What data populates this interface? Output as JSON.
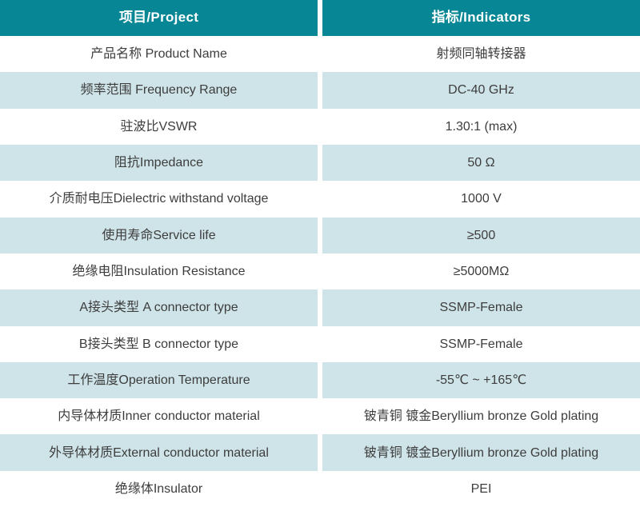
{
  "theme": {
    "header_bg": "#078695",
    "header_text": "#ffffff",
    "row_alt_bg": "#cfe4e8",
    "row_bg": "#ffffff",
    "text_color": "#3d3d3d"
  },
  "table": {
    "header": {
      "project": "项目/Project",
      "indicators": "指标/Indicators"
    },
    "rows": [
      {
        "project": "产品名称 Product Name",
        "indicator": "射频同轴转接器"
      },
      {
        "project": "频率范围 Frequency Range",
        "indicator": "DC-40 GHz"
      },
      {
        "project": "驻波比VSWR",
        "indicator": "1.30:1 (max)"
      },
      {
        "project": "阻抗Impedance",
        "indicator": "50 Ω"
      },
      {
        "project": "介质耐电压Dielectric withstand voltage",
        "indicator": "1000 V"
      },
      {
        "project": "使用寿命Service life",
        "indicator": "≥500"
      },
      {
        "project": "绝缘电阻Insulation Resistance",
        "indicator": "≥5000MΩ"
      },
      {
        "project": "A接头类型 A connector type",
        "indicator": "SSMP-Female"
      },
      {
        "project": "B接头类型 B connector type",
        "indicator": "SSMP-Female"
      },
      {
        "project": "工作温度Operation Temperature",
        "indicator": "-55℃ ~ +165℃"
      },
      {
        "project": "内导体材质Inner conductor material",
        "indicator": "铍青铜 镀金Beryllium bronze Gold plating"
      },
      {
        "project": "外导体材质External conductor material",
        "indicator": "铍青铜 镀金Beryllium bronze Gold plating"
      },
      {
        "project": "绝缘体Insulator",
        "indicator": "PEI"
      }
    ]
  }
}
